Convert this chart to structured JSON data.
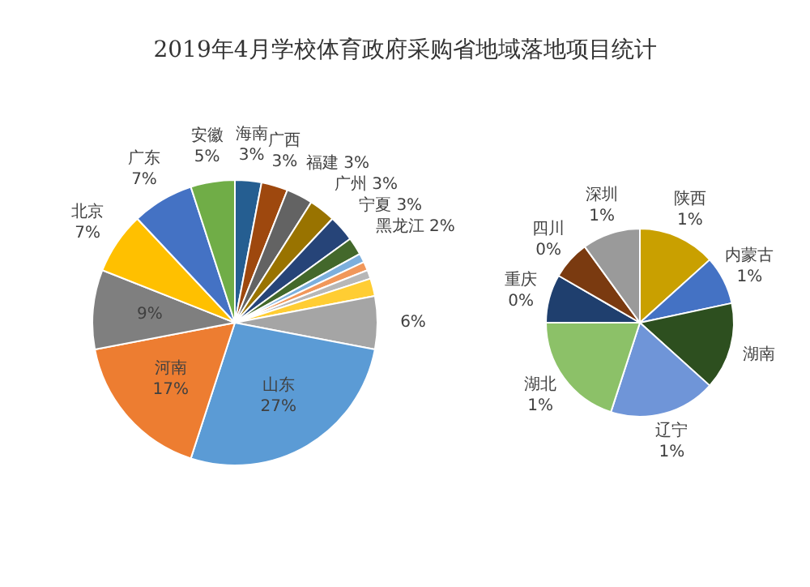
{
  "chart_data": [
    {
      "type": "pie",
      "title": "2019年4月学校体育政府采购省地域落地项目统计",
      "categories": [
        "海南",
        "广西",
        "福建",
        "广州",
        "宁夏",
        "黑龙江",
        null,
        null,
        null,
        null,
        null,
        "山东",
        "河南",
        null,
        "北京",
        "广东",
        "安徽"
      ],
      "values": [
        3,
        3,
        3,
        3,
        3,
        2,
        1,
        1,
        1,
        2,
        6,
        27,
        17,
        9,
        7,
        7,
        5
      ],
      "value_labels": [
        "3%",
        "3%",
        "3%",
        "3%",
        "3%",
        "2%",
        null,
        null,
        null,
        null,
        "6%",
        "27%",
        "17%",
        "9%",
        "7%",
        "7%",
        "5%"
      ],
      "colors": [
        "#255e91",
        "#9e480e",
        "#636363",
        "#997300",
        "#264478",
        "#43682b",
        "#7cafdd",
        "#f1975a",
        "#b7b7b7",
        "#ffcd33",
        "#a5a5a5",
        "#5b9bd5",
        "#ed7d31",
        "#7f7f7f",
        "#ffc000",
        "#4472c4",
        "#70ad47"
      ]
    },
    {
      "type": "pie",
      "categories": [
        "陕西",
        "内蒙古",
        "湖南",
        "辽宁",
        "湖北",
        "重庆",
        "四川",
        "深圳"
      ],
      "values": [
        0.8,
        0.5,
        0.9,
        1.1,
        1.2,
        0.5,
        0.4,
        0.6
      ],
      "value_labels": [
        "1%",
        "1%",
        null,
        "1%",
        "1%",
        "0%",
        "0%",
        "1%"
      ],
      "colors": [
        "#c9a000",
        "#4472c4",
        "#2d4f1f",
        "#6f95d8",
        "#8cc168",
        "#1f3f6e",
        "#7a3a10",
        "#9a9a9a"
      ]
    }
  ]
}
